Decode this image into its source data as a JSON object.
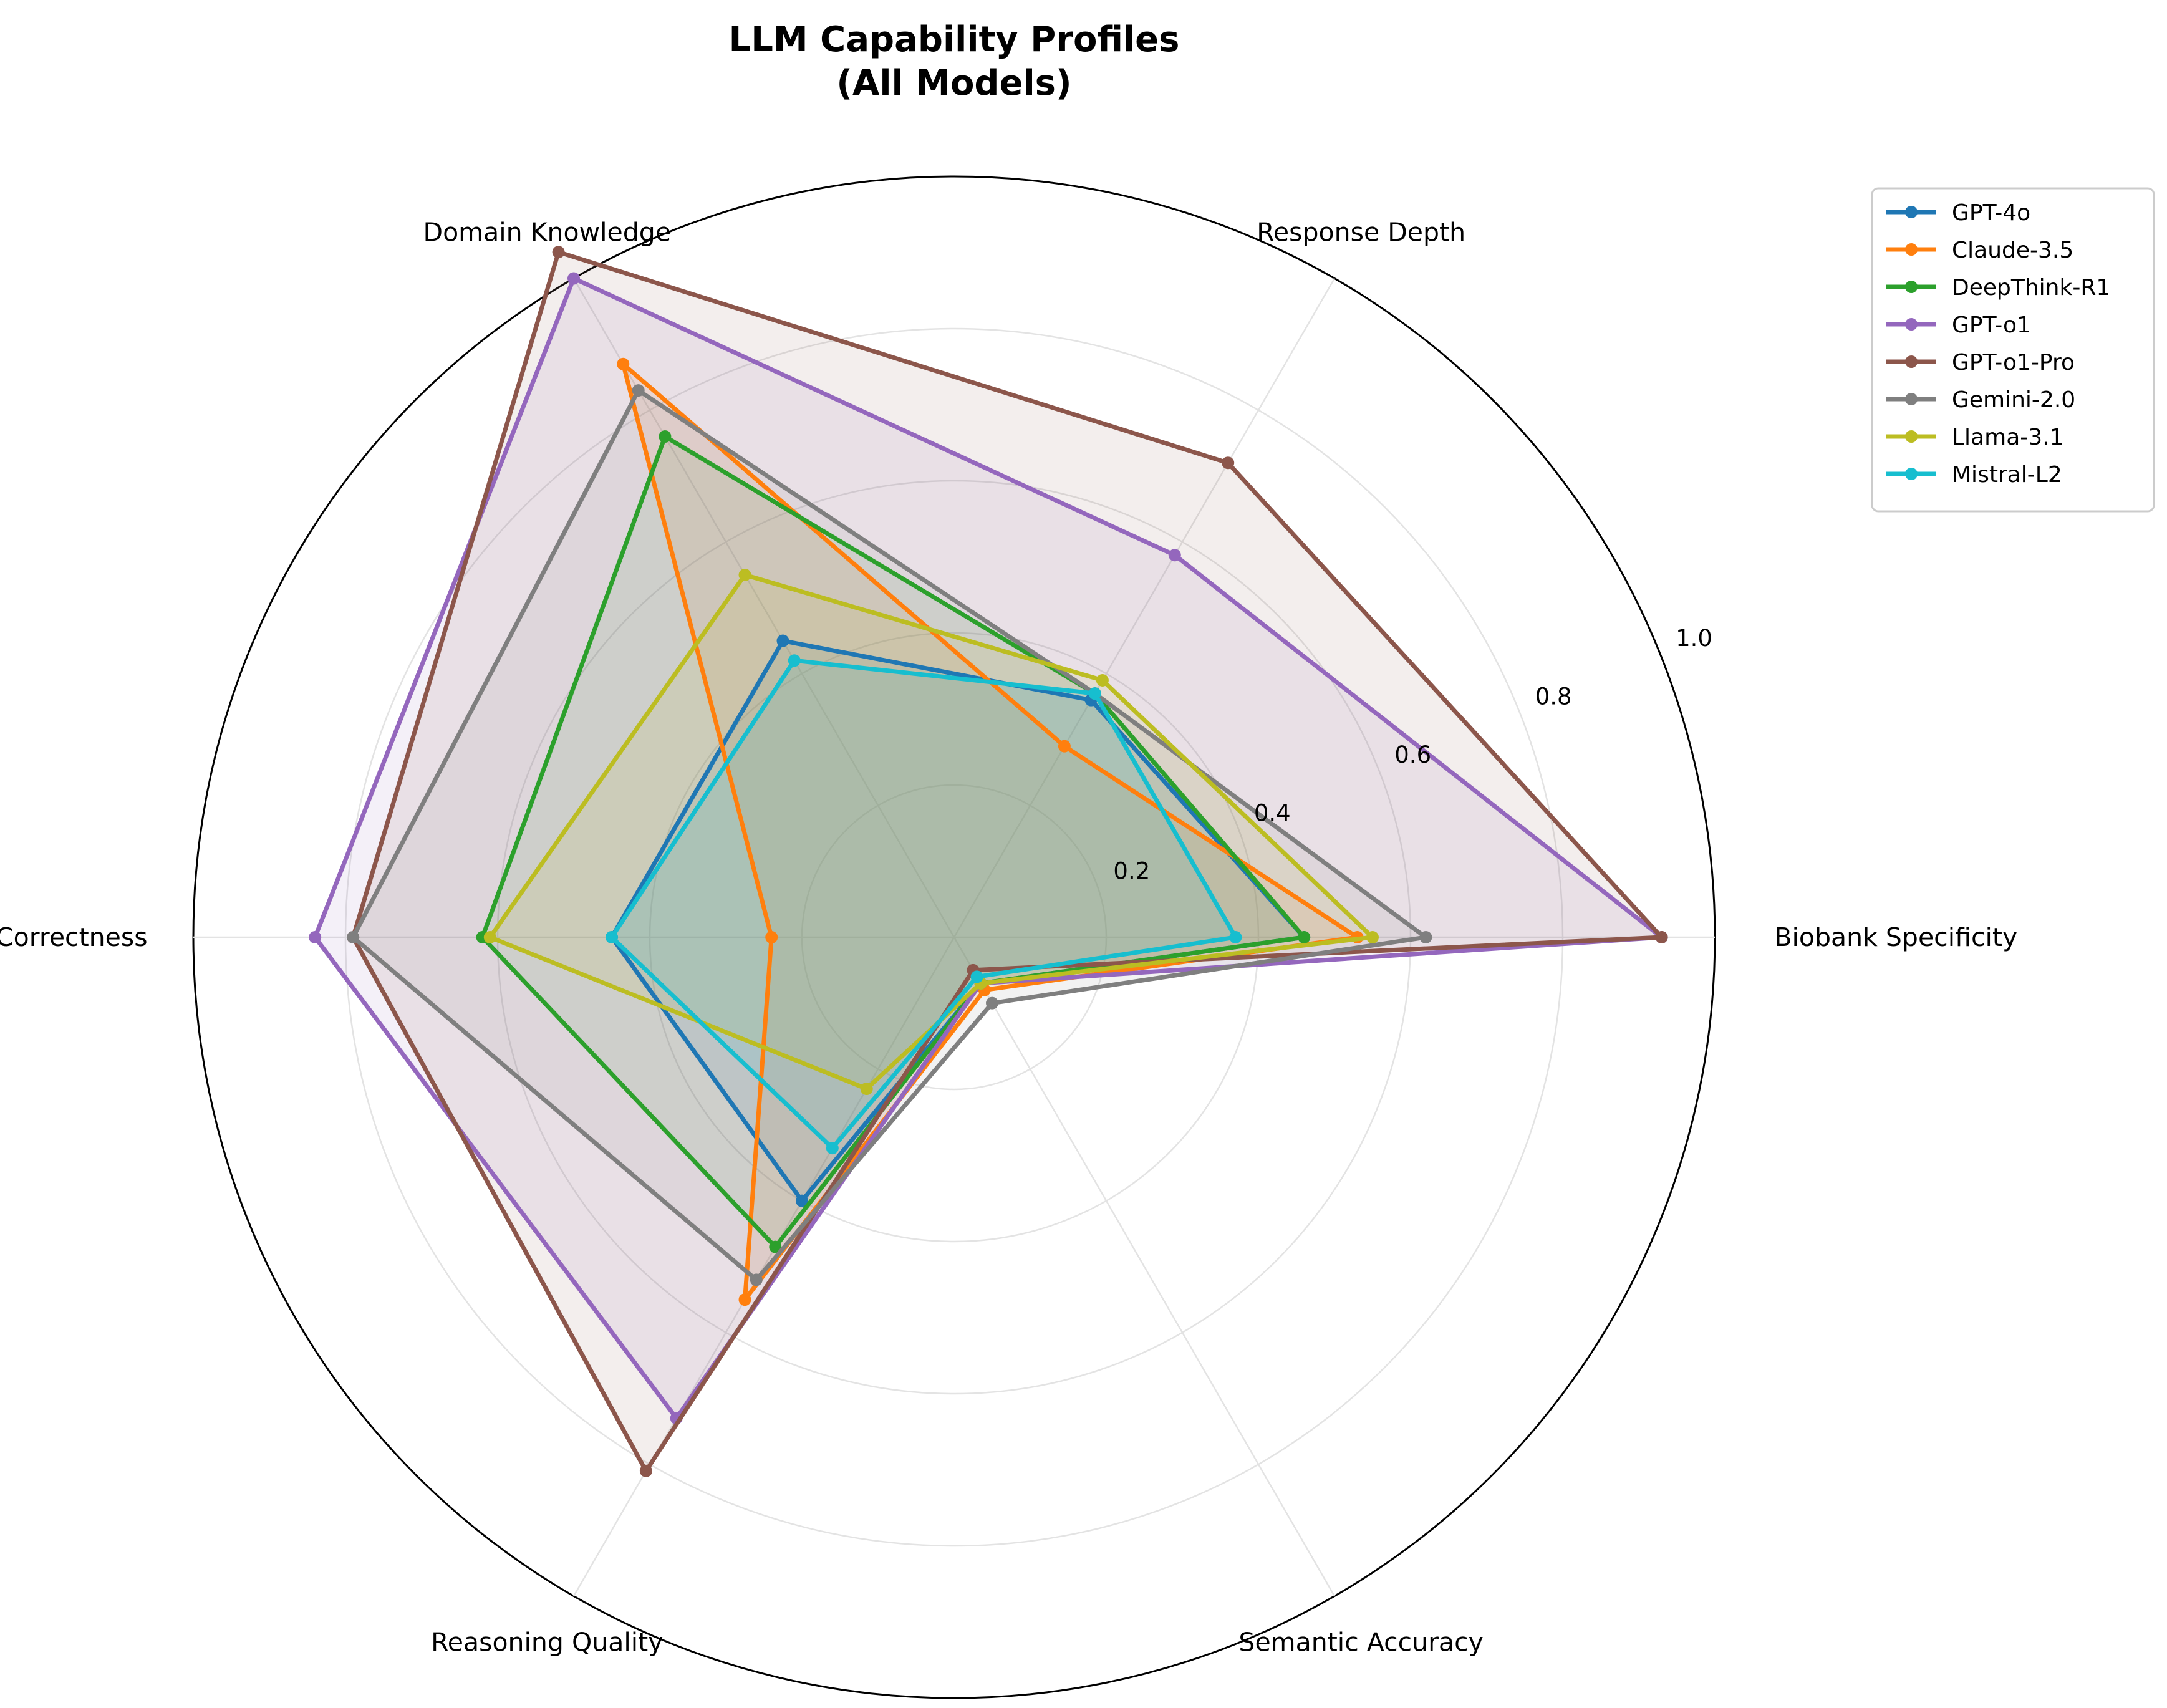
{
  "chart_data": {
    "type": "radar",
    "title_line1": "LLM Capability Profiles",
    "title_line2": "(All Models)",
    "axes": [
      "Biobank Specificity",
      "Response Depth",
      "Domain Knowledge",
      "Factual Correctness",
      "Reasoning Quality",
      "Semantic Accuracy"
    ],
    "rlim": [
      0,
      1
    ],
    "rticks": [
      "0.2",
      "0.4",
      "0.6",
      "0.8",
      "1.0"
    ],
    "grid": true,
    "legend_position": "top-right, outside plot",
    "series": [
      {
        "name": "GPT-4o",
        "color": "#1f77b4",
        "values": [
          0.46,
          0.36,
          0.45,
          0.45,
          0.4,
          0.07
        ]
      },
      {
        "name": "Claude-3.5",
        "color": "#ff7f0e",
        "values": [
          0.53,
          0.29,
          0.87,
          0.24,
          0.55,
          0.08
        ]
      },
      {
        "name": "DeepThink-R1",
        "color": "#2ca02c",
        "values": [
          0.46,
          0.37,
          0.76,
          0.62,
          0.47,
          0.07
        ]
      },
      {
        "name": "GPT-o1",
        "color": "#9467bd",
        "values": [
          0.93,
          0.58,
          1.0,
          0.84,
          0.73,
          0.07
        ]
      },
      {
        "name": "GPT-o1-Pro",
        "color": "#8c564b",
        "values": [
          0.93,
          0.72,
          1.04,
          0.79,
          0.81,
          0.05
        ]
      },
      {
        "name": "Gemini-2.0",
        "color": "#7f7f7f",
        "values": [
          0.62,
          0.37,
          0.83,
          0.79,
          0.52,
          0.1
        ]
      },
      {
        "name": "Llama-3.1",
        "color": "#bcbd22",
        "values": [
          0.55,
          0.39,
          0.55,
          0.61,
          0.23,
          0.07
        ]
      },
      {
        "name": "Mistral-L2",
        "color": "#17becf",
        "values": [
          0.37,
          0.37,
          0.42,
          0.45,
          0.32,
          0.06
        ]
      }
    ]
  }
}
